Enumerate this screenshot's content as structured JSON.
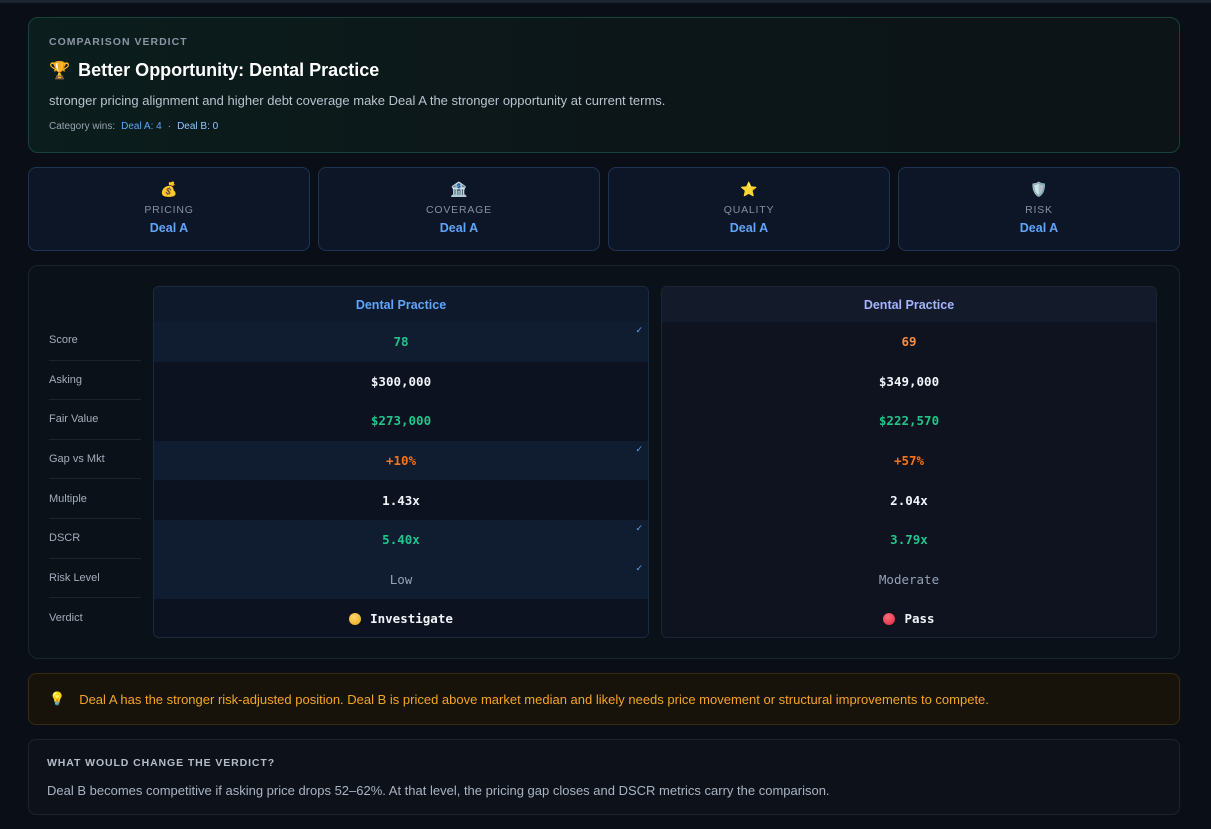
{
  "verdict": {
    "eyebrow": "COMPARISON VERDICT",
    "trophy_icon": "🏆",
    "title": "Better Opportunity: Dental Practice",
    "summary": "stronger pricing alignment and higher debt coverage make Deal A the stronger opportunity at current terms.",
    "wins_label": "Category wins:",
    "wins_a": "Deal A: 4",
    "wins_sep": "·",
    "wins_b": "Deal B: 0"
  },
  "categories": [
    {
      "icon": "💰",
      "icon_name": "money-bag-icon",
      "label": "PRICING",
      "winner": "Deal A"
    },
    {
      "icon": "🏦",
      "icon_name": "bank-icon",
      "label": "COVERAGE",
      "winner": "Deal A"
    },
    {
      "icon": "⭐",
      "icon_name": "star-icon",
      "label": "QUALITY",
      "winner": "Deal A"
    },
    {
      "icon": "🛡️",
      "icon_name": "shield-icon",
      "label": "RISK",
      "winner": "Deal A"
    }
  ],
  "comparison": {
    "row_labels": [
      "Score",
      "Asking",
      "Fair Value",
      "Gap vs Mkt",
      "Multiple",
      "DSCR",
      "Risk Level",
      "Verdict"
    ],
    "deal_a": {
      "name": "Dental Practice",
      "score": "78",
      "asking": "$300,000",
      "fair_value": "$273,000",
      "gap": "+10%",
      "multiple": "1.43x",
      "dscr": "5.40x",
      "risk": "Low",
      "verdict": "Investigate",
      "check": "✓"
    },
    "deal_b": {
      "name": "Dental Practice",
      "score": "69",
      "asking": "$349,000",
      "fair_value": "$222,570",
      "gap": "+57%",
      "multiple": "2.04x",
      "dscr": "3.79x",
      "risk": "Moderate",
      "verdict": "Pass"
    }
  },
  "insight": {
    "icon": "💡",
    "text": "Deal A has the stronger risk-adjusted position. Deal B is priced above market median and likely needs price movement or structural improvements to compete."
  },
  "change": {
    "heading": "WHAT WOULD CHANGE THE VERDICT?",
    "text": "Deal B becomes competitive if asking price drops 52–62%. At that level, the pricing gap closes and DSCR metrics carry the comparison."
  },
  "colors": {
    "accent_blue": "#60a5fa",
    "good_green": "#22c58b",
    "warn_orange": "#f97316",
    "amber": "#f5a524"
  }
}
